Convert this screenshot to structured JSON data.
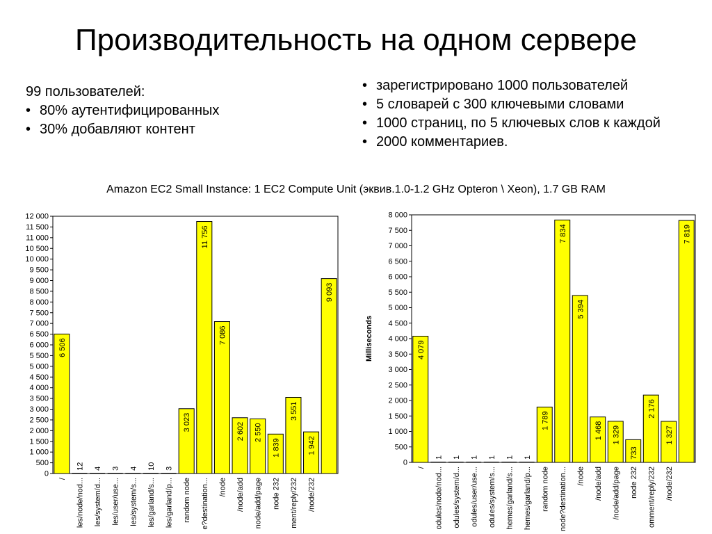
{
  "page": {
    "title": "Производительность на одном сервере",
    "left": {
      "heading": "99 пользователей:",
      "bullets": [
        "80% аутентифицированных",
        "30% добавляют контент"
      ]
    },
    "right": {
      "bullets": [
        "зарегистрировано 1000 пользователей",
        "5 словарей с 300 ключевыми словами",
        "1000 страниц, по 5 ключевых слов к каждой",
        "2000 комментариев."
      ]
    },
    "subtitle": "Amazon EC2 Small Instance: 1 EC2 Compute Unit (эквив.1.0-1.2 GHz Opteron \\ Xeon), 1.7 GB RAM"
  },
  "chart_data": [
    {
      "type": "bar",
      "title": "",
      "xlabel": "",
      "ylabel": "",
      "ylim": [
        0,
        12000
      ],
      "yticks": [
        "0",
        "500",
        "1 000",
        "1 500",
        "2 000",
        "2 500",
        "3 000",
        "3 500",
        "4 000",
        "4 500",
        "5 000",
        "5 500",
        "6 000",
        "6 500",
        "7 000",
        "7 500",
        "8 000",
        "8 500",
        "9 000",
        "9 500",
        "10 000",
        "10 500",
        "11 000",
        "11 500",
        "12 000"
      ],
      "categories": [
        "/",
        "les/node/nod...",
        "les/system/d...",
        "les/user/use...",
        "les/system/s...",
        "les/garland/s...",
        "les/garland/p...",
        "random node",
        "e?destination...",
        "/node",
        "/node/add",
        "node/add/page",
        "node 232",
        "ment/reply/232",
        "/node/232",
        ""
      ],
      "values": [
        6506,
        12,
        4,
        3,
        4,
        10,
        3,
        3023,
        11756,
        7086,
        2602,
        2550,
        1839,
        3551,
        1942,
        9093
      ],
      "data_labels": [
        "6 506",
        "12",
        "4",
        "3",
        "4",
        "10",
        "3",
        "3 023",
        "11 756",
        "7 086",
        "2 602",
        "2 550",
        "1 839",
        "3 551",
        "1 942",
        "9 093"
      ],
      "bar_color": "#ffff00",
      "grid": false
    },
    {
      "type": "bar",
      "title": "",
      "xlabel": "",
      "ylabel": "Milliseconds",
      "ylim": [
        0,
        8000
      ],
      "yticks": [
        "0",
        "500",
        "1 000",
        "1 500",
        "2 000",
        "2 500",
        "3 000",
        "3 500",
        "4 000",
        "4 500",
        "5 000",
        "5 500",
        "6 000",
        "6 500",
        "7 000",
        "7 500",
        "8 000"
      ],
      "categories": [
        "/",
        "odules/node/nod...",
        "odules/system/d...",
        "odules/user/use...",
        "odules/system/s...",
        "hemes/garland/s...",
        "hemes/garland/p...",
        "random node",
        "node?destination...",
        "/node",
        "/node/add",
        "/node/add/page",
        "node 232",
        "omment/reply/232",
        "/node/232",
        ""
      ],
      "values": [
        4079,
        1,
        1,
        1,
        1,
        1,
        1,
        1789,
        7834,
        5394,
        1468,
        1329,
        733,
        2176,
        1327,
        7819
      ],
      "data_labels": [
        "4 079",
        "1",
        "1",
        "1",
        "1",
        "1",
        "1",
        "1 789",
        "7 834",
        "5 394",
        "1 468",
        "1 329",
        "733",
        "2 176",
        "1 327",
        "7 819"
      ],
      "bar_color": "#ffff00",
      "grid": false
    }
  ]
}
